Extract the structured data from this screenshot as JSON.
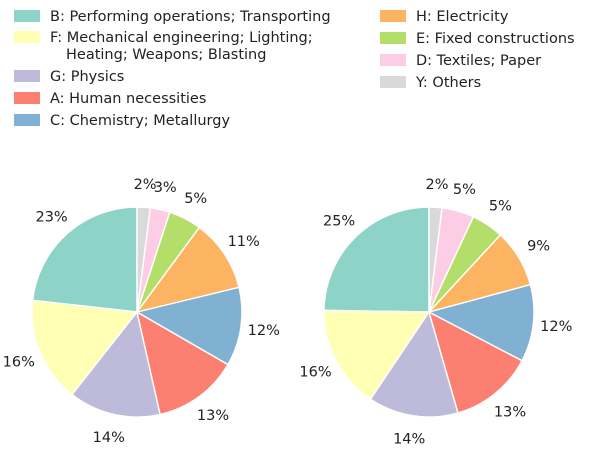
{
  "chart_data": {
    "type": "pie",
    "legend": {
      "placement": "top",
      "entries": [
        {
          "key": "B",
          "label": "B: Performing operations; Transporting",
          "color": "#8dd3c7"
        },
        {
          "key": "F",
          "label": [
            "F: Mechanical engineering; Lighting;",
            "Heating; Weapons; Blasting"
          ],
          "color": "#ffffb3"
        },
        {
          "key": "G",
          "label": "G: Physics",
          "color": "#bebada"
        },
        {
          "key": "A",
          "label": "A: Human necessities",
          "color": "#fb8072"
        },
        {
          "key": "C",
          "label": "C: Chemistry; Metallurgy",
          "color": "#80b1d3"
        },
        {
          "key": "H",
          "label": "H: Electricity",
          "color": "#fdb462"
        },
        {
          "key": "E",
          "label": "E: Fixed constructions",
          "color": "#b3de69"
        },
        {
          "key": "D",
          "label": "D: Textiles; Paper",
          "color": "#fccde5"
        },
        {
          "key": "Y",
          "label": "Y: Others",
          "color": "#d9d9d9"
        }
      ]
    },
    "pies": [
      {
        "slices": [
          {
            "key": "B",
            "value": 23,
            "label": "23%"
          },
          {
            "key": "F",
            "value": 16,
            "label": "16%"
          },
          {
            "key": "G",
            "value": 14,
            "label": "14%"
          },
          {
            "key": "A",
            "value": 13,
            "label": "13%"
          },
          {
            "key": "C",
            "value": 12,
            "label": "12%"
          },
          {
            "key": "H",
            "value": 11,
            "label": "11%"
          },
          {
            "key": "E",
            "value": 5,
            "label": "5%"
          },
          {
            "key": "D",
            "value": 3,
            "label": "3%"
          },
          {
            "key": "Y",
            "value": 2,
            "label": "2%"
          }
        ]
      },
      {
        "slices": [
          {
            "key": "B",
            "value": 25,
            "label": "25%"
          },
          {
            "key": "F",
            "value": 16,
            "label": "16%"
          },
          {
            "key": "G",
            "value": 14,
            "label": "14%"
          },
          {
            "key": "A",
            "value": 13,
            "label": "13%"
          },
          {
            "key": "C",
            "value": 12,
            "label": "12%"
          },
          {
            "key": "H",
            "value": 9,
            "label": "9%"
          },
          {
            "key": "E",
            "value": 5,
            "label": "5%"
          },
          {
            "key": "D",
            "value": 5,
            "label": "5%"
          },
          {
            "key": "Y",
            "value": 2,
            "label": "2%"
          }
        ]
      }
    ]
  }
}
